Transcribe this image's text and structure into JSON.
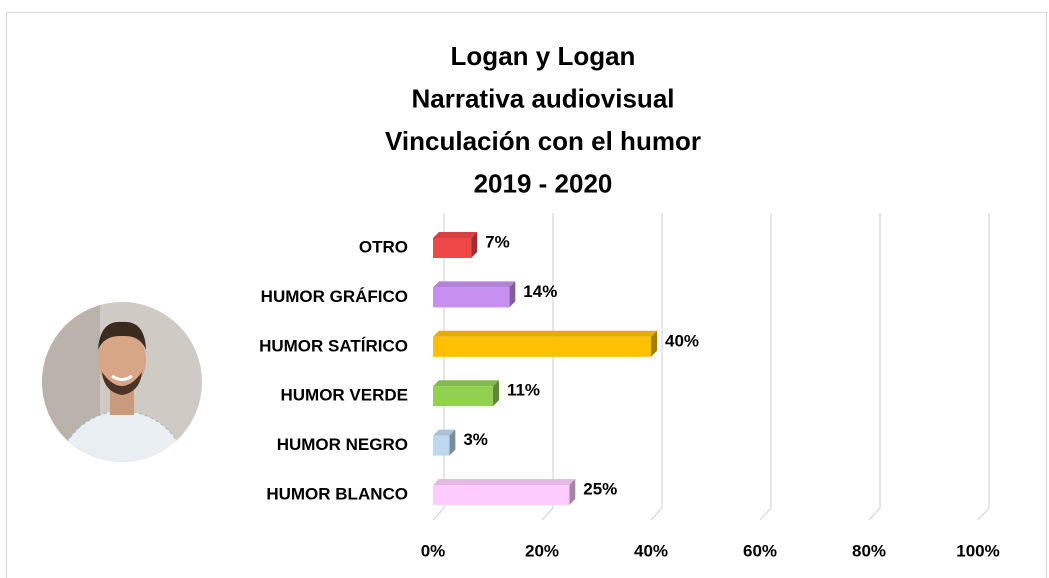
{
  "chart_data": {
    "type": "bar",
    "orientation": "horizontal",
    "title": [
      "Logan y Logan",
      "Narrativa audiovisual",
      "Vinculación con el humor",
      "2019 - 2020"
    ],
    "categories": [
      "OTRO",
      "HUMOR GRÁFICO",
      "HUMOR SATÍRICO",
      "HUMOR VERDE",
      "HUMOR NEGRO",
      "HUMOR BLANCO"
    ],
    "values": [
      7,
      14,
      40,
      11,
      3,
      25
    ],
    "value_labels": [
      "7%",
      "14%",
      "40%",
      "11%",
      "3%",
      "25%"
    ],
    "colors": [
      "#f04848",
      "#c78ff0",
      "#ffc000",
      "#92d050",
      "#bdd7ee",
      "#ffccff"
    ],
    "xlim": [
      0,
      100
    ],
    "xticks": [
      {
        "value": 0,
        "label": "0%"
      },
      {
        "value": 20,
        "label": "20%"
      },
      {
        "value": 40,
        "label": "40%"
      },
      {
        "value": 60,
        "label": "60%"
      },
      {
        "value": 80,
        "label": "80%"
      },
      {
        "value": 100,
        "label": "100%"
      }
    ],
    "grid": true
  }
}
